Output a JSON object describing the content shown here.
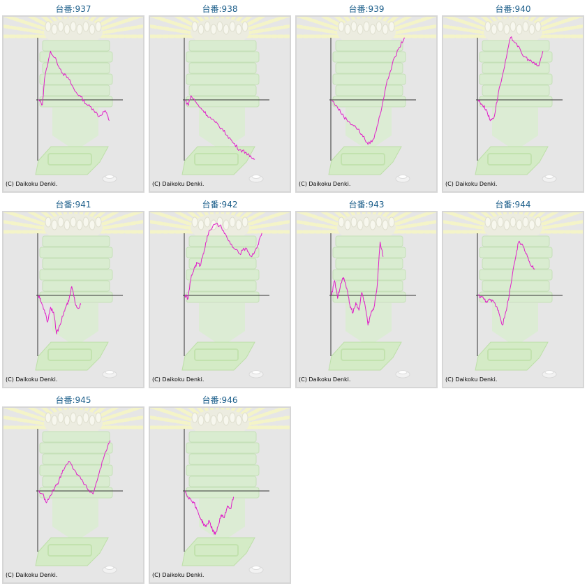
{
  "copyright": "(C) Daikoku Denki.",
  "colors": {
    "line": "#e020c8",
    "axis": "#333333",
    "panel_bg": "#e6e6e6",
    "panel_border": "#d6d6d6",
    "title": "#1b5e8a"
  },
  "chart_data": [
    {
      "type": "line",
      "title": "台番:937",
      "x": [
        0,
        40,
        60,
        120,
        180,
        240,
        300,
        360,
        420,
        480,
        540,
        600,
        660,
        700
      ],
      "y": [
        0,
        -800,
        3500,
        8200,
        6500,
        4500,
        3500,
        1500,
        500,
        -800,
        -1500,
        -2800,
        -1800,
        -3500
      ]
    },
    {
      "type": "line",
      "title": "台番:938",
      "x": [
        0,
        30,
        60,
        120,
        180,
        240,
        300,
        360,
        420,
        480,
        540,
        600,
        640,
        690
      ],
      "y": [
        0,
        -900,
        700,
        -700,
        -1800,
        -2900,
        -3800,
        -4800,
        -6000,
        -7300,
        -8400,
        -8800,
        -9600,
        -10000
      ]
    },
    {
      "type": "line",
      "title": "台番:939",
      "x": [
        0,
        60,
        120,
        180,
        240,
        300,
        360,
        420,
        480,
        540,
        600,
        660,
        720
      ],
      "y": [
        0,
        -1300,
        -2800,
        -3800,
        -4600,
        -5800,
        -7500,
        -6500,
        -2500,
        2500,
        6000,
        8500,
        10500
      ]
    },
    {
      "type": "line",
      "title": "台番:940",
      "x": [
        0,
        40,
        80,
        120,
        160,
        200,
        260,
        320,
        380,
        440,
        500,
        560,
        600,
        640
      ],
      "y": [
        0,
        -800,
        -1600,
        -3500,
        -2800,
        1200,
        5500,
        10500,
        9500,
        7500,
        6800,
        6000,
        5700,
        8200
      ]
    },
    {
      "type": "line",
      "title": "台番:941",
      "x": [
        0,
        30,
        60,
        90,
        120,
        150,
        180,
        210,
        240,
        270,
        300,
        330,
        360,
        390,
        420
      ],
      "y": [
        0,
        -1200,
        -2500,
        -4500,
        -2000,
        -2800,
        -6500,
        -5000,
        -3500,
        -2000,
        -1000,
        1500,
        -1000,
        -2200,
        -1500
      ]
    },
    {
      "type": "line",
      "title": "台番:942",
      "x": [
        0,
        30,
        60,
        90,
        120,
        150,
        180,
        210,
        240,
        300,
        360,
        420,
        480,
        540,
        600,
        660,
        720,
        760
      ],
      "y": [
        0,
        -500,
        3000,
        4500,
        5500,
        5000,
        7000,
        9000,
        11000,
        12000,
        11500,
        9500,
        8000,
        7000,
        8000,
        6500,
        8500,
        10500
      ]
    },
    {
      "type": "line",
      "title": "台番:943",
      "x": [
        0,
        30,
        60,
        90,
        120,
        150,
        180,
        210,
        240,
        270,
        300,
        330,
        360,
        390,
        420,
        450,
        480,
        510
      ],
      "y": [
        0,
        2500,
        -500,
        2000,
        3000,
        1200,
        -1500,
        -3000,
        -1200,
        -2500,
        500,
        -1500,
        -5000,
        -3000,
        -2000,
        1500,
        9000,
        6500
      ]
    },
    {
      "type": "line",
      "title": "台番:944",
      "x": [
        0,
        40,
        80,
        120,
        160,
        200,
        240,
        280,
        320,
        360,
        400,
        440,
        480,
        520,
        560
      ],
      "y": [
        0,
        -300,
        -1000,
        -800,
        -1200,
        -2500,
        -5000,
        -2500,
        1500,
        5500,
        9000,
        8500,
        7000,
        5000,
        4500
      ]
    },
    {
      "type": "line",
      "title": "台番:945",
      "x": [
        0,
        40,
        80,
        120,
        160,
        200,
        240,
        300,
        360,
        420,
        480,
        540,
        600,
        660,
        710
      ],
      "y": [
        0,
        -500,
        -2000,
        -800,
        500,
        1500,
        3500,
        5000,
        3500,
        2000,
        500,
        -500,
        3000,
        6500,
        8500
      ]
    },
    {
      "type": "line",
      "title": "台番:946",
      "x": [
        0,
        30,
        60,
        90,
        120,
        150,
        180,
        210,
        240,
        270,
        300,
        330,
        360,
        390,
        420,
        450,
        480
      ],
      "y": [
        0,
        -1000,
        -1500,
        -2000,
        -3200,
        -4500,
        -5500,
        -6000,
        -5000,
        -6500,
        -7300,
        -5800,
        -4000,
        -4500,
        -2500,
        -3000,
        -1000
      ]
    }
  ]
}
